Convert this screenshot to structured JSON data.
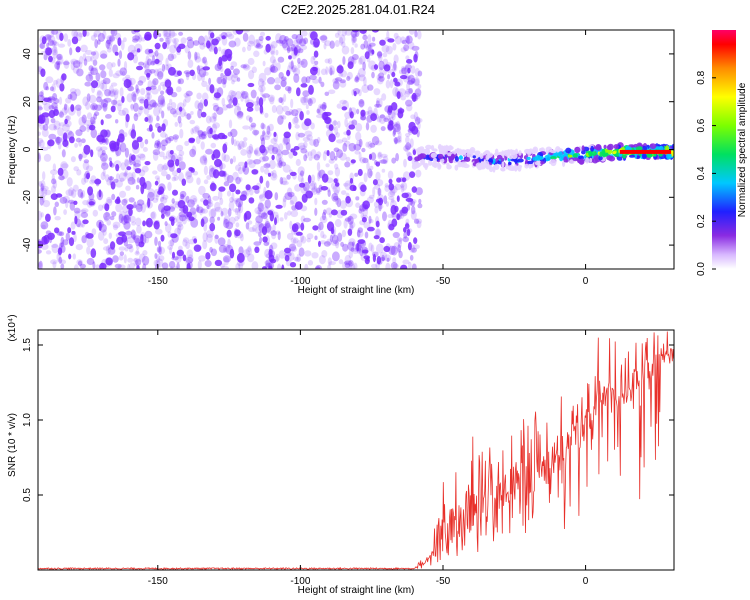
{
  "title": "C2E2.2025.281.04.01.R24",
  "colors": {
    "snr_line": "#e8302a",
    "scatter": "#7b2cff",
    "axes": "#000000",
    "background": "#ffffff"
  },
  "chart_data": [
    {
      "type": "heatmap",
      "name": "spectrogram",
      "xlabel": "Height of straight line (km)",
      "ylabel": "Frequency (Hz)",
      "xlim": [
        -192,
        31
      ],
      "ylim": [
        -50,
        50
      ],
      "xticks": [
        -150,
        -100,
        -50,
        0
      ],
      "xtick_labels": [
        "-150",
        "-100",
        "-50",
        "0"
      ],
      "yticks": [
        -40,
        -20,
        0,
        20,
        40
      ],
      "ytick_labels": [
        "-40",
        "-20",
        "0",
        "20",
        "40"
      ],
      "noise_region_x": [
        -192,
        -60
      ],
      "signal_trace": {
        "x": [
          -60,
          -50,
          -40,
          -30,
          -20,
          -10,
          0,
          10,
          20,
          30
        ],
        "center_freq": [
          -3,
          -3,
          -4,
          -5,
          -4,
          -3,
          -2,
          -1,
          -1,
          -1
        ],
        "amplitude": [
          0.3,
          0.35,
          0.4,
          0.45,
          0.5,
          0.6,
          0.7,
          0.8,
          0.9,
          1.0
        ]
      },
      "colorbar": {
        "label": "Normalized spectral amplitude",
        "range": [
          0.0,
          1.0
        ],
        "ticks": [
          0.0,
          0.2,
          0.4,
          0.6,
          0.8
        ],
        "tick_labels": [
          "0.0",
          "0.2",
          "0.4",
          "0.6",
          "0.8"
        ]
      }
    },
    {
      "type": "line",
      "name": "snr",
      "xlabel": "Height of straight line (km)",
      "ylabel": "SNR (10 * v/v)",
      "scale_label": "(x10⁴)",
      "xlim": [
        -192,
        31
      ],
      "ylim": [
        0,
        1.6
      ],
      "xticks": [
        -150,
        -100,
        -50,
        0
      ],
      "xtick_labels": [
        "-150",
        "-100",
        "-50",
        "0"
      ],
      "yticks": [
        0.5,
        1.0,
        1.5
      ],
      "ytick_labels": [
        "0.5",
        "1.0",
        "1.5"
      ],
      "envelope": {
        "x": [
          -192,
          -60,
          -55,
          -50,
          -45,
          -40,
          -35,
          -30,
          -25,
          -20,
          -15,
          -10,
          -5,
          0,
          5,
          10,
          15,
          20,
          25,
          31
        ],
        "base": [
          0.01,
          0.01,
          0.04,
          0.15,
          0.2,
          0.25,
          0.3,
          0.35,
          0.45,
          0.5,
          0.55,
          0.6,
          0.75,
          0.85,
          0.95,
          1.05,
          1.1,
          1.2,
          1.3,
          1.4
        ],
        "peak": [
          0.02,
          0.02,
          0.12,
          0.6,
          0.7,
          0.9,
          0.85,
          0.9,
          1.0,
          1.1,
          1.05,
          1.2,
          1.15,
          1.3,
          1.6,
          1.55,
          1.5,
          1.55,
          1.6,
          1.6
        ]
      }
    }
  ]
}
